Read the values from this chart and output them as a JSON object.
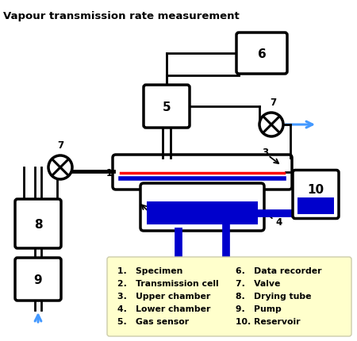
{
  "title": "Vapour transmission rate measurement",
  "background_color": "#ffffff",
  "legend_bg": "#ffffcc",
  "legend_items_col1": [
    "1.   Specimen",
    "2.   Transmission cell",
    "3.   Upper chamber",
    "4.   Lower chamber",
    "5.   Gas sensor"
  ],
  "legend_items_col2": [
    "6.   Data recorder",
    "7.   Valve",
    "8.   Drying tube",
    "9.   Pump",
    "10. Reservoir"
  ],
  "black": "#000000",
  "blue": "#0000cc",
  "red": "#ff0000",
  "arrow_blue": "#4499ff"
}
